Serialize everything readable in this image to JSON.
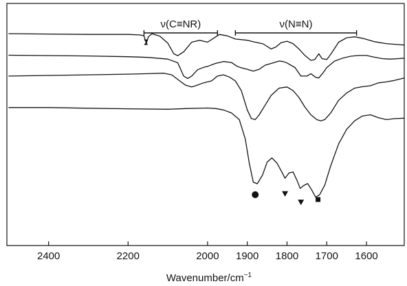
{
  "chart_data": {
    "type": "line",
    "title": "",
    "xlabel": "Wavenumber/cm",
    "xlabel_superscript": "−1",
    "ylabel": "",
    "xlim": [
      2505,
      1505
    ],
    "x_reversed": true,
    "ylim": [
      0,
      1
    ],
    "grid": false,
    "legend": "none",
    "xticks": [
      2400,
      2200,
      2000,
      1900,
      1800,
      1700,
      1600
    ],
    "regions": [
      {
        "label": "ν(C≡NR)",
        "x_range": [
          2160,
          1975
        ]
      },
      {
        "label": "ν(N≡N)",
        "x_range": [
          1930,
          1625
        ]
      }
    ],
    "markers": [
      {
        "label": "‡",
        "shape": "double-dagger",
        "x": 2155,
        "y": 0.84
      },
      {
        "label": "●",
        "shape": "circle",
        "x": 1880,
        "y": 0.21
      },
      {
        "label": "▼",
        "shape": "triangle-down",
        "x": 1805,
        "y": 0.213
      },
      {
        "label": "▼",
        "shape": "triangle-down",
        "x": 1765,
        "y": 0.178
      },
      {
        "label": "■",
        "shape": "square",
        "x": 1722,
        "y": 0.19
      }
    ],
    "series": [
      {
        "points": [
          [
            2500,
            0.875
          ],
          [
            2300,
            0.872
          ],
          [
            2200,
            0.872
          ],
          [
            2170,
            0.87
          ],
          [
            2160,
            0.866
          ],
          [
            2154,
            0.835
          ],
          [
            2149,
            0.862
          ],
          [
            2140,
            0.875
          ],
          [
            2120,
            0.865
          ],
          [
            2100,
            0.836
          ],
          [
            2085,
            0.792
          ],
          [
            2075,
            0.784
          ],
          [
            2060,
            0.8
          ],
          [
            2040,
            0.84
          ],
          [
            2020,
            0.848
          ],
          [
            2000,
            0.84
          ],
          [
            1985,
            0.856
          ],
          [
            1970,
            0.872
          ],
          [
            1950,
            0.866
          ],
          [
            1930,
            0.853
          ],
          [
            1900,
            0.848
          ],
          [
            1880,
            0.84
          ],
          [
            1860,
            0.833
          ],
          [
            1840,
            0.812
          ],
          [
            1828,
            0.82
          ],
          [
            1815,
            0.838
          ],
          [
            1800,
            0.844
          ],
          [
            1785,
            0.834
          ],
          [
            1770,
            0.812
          ],
          [
            1755,
            0.785
          ],
          [
            1740,
            0.765
          ],
          [
            1730,
            0.768
          ],
          [
            1720,
            0.792
          ],
          [
            1712,
            0.772
          ],
          [
            1700,
            0.768
          ],
          [
            1690,
            0.79
          ],
          [
            1670,
            0.84
          ],
          [
            1650,
            0.858
          ],
          [
            1630,
            0.862
          ],
          [
            1610,
            0.856
          ],
          [
            1580,
            0.842
          ],
          [
            1550,
            0.834
          ],
          [
            1520,
            0.83
          ],
          [
            1505,
            0.828
          ]
        ]
      },
      {
        "points": [
          [
            2500,
            0.786
          ],
          [
            2300,
            0.783
          ],
          [
            2200,
            0.78
          ],
          [
            2150,
            0.777
          ],
          [
            2100,
            0.77
          ],
          [
            2075,
            0.755
          ],
          [
            2060,
            0.7
          ],
          [
            2050,
            0.69
          ],
          [
            2040,
            0.7
          ],
          [
            2025,
            0.726
          ],
          [
            2010,
            0.736
          ],
          [
            2000,
            0.74
          ],
          [
            1980,
            0.752
          ],
          [
            1960,
            0.76
          ],
          [
            1940,
            0.756
          ],
          [
            1925,
            0.74
          ],
          [
            1915,
            0.734
          ],
          [
            1900,
            0.728
          ],
          [
            1885,
            0.72
          ],
          [
            1870,
            0.728
          ],
          [
            1855,
            0.745
          ],
          [
            1840,
            0.752
          ],
          [
            1820,
            0.762
          ],
          [
            1810,
            0.76
          ],
          [
            1800,
            0.754
          ],
          [
            1780,
            0.735
          ],
          [
            1765,
            0.7
          ],
          [
            1750,
            0.7
          ],
          [
            1740,
            0.71
          ],
          [
            1728,
            0.695
          ],
          [
            1720,
            0.692
          ],
          [
            1710,
            0.712
          ],
          [
            1700,
            0.735
          ],
          [
            1680,
            0.762
          ],
          [
            1660,
            0.774
          ],
          [
            1640,
            0.782
          ],
          [
            1620,
            0.785
          ],
          [
            1600,
            0.785
          ],
          [
            1580,
            0.778
          ],
          [
            1560,
            0.772
          ],
          [
            1540,
            0.77
          ],
          [
            1520,
            0.772
          ],
          [
            1505,
            0.774
          ]
        ]
      },
      {
        "points": [
          [
            2500,
            0.7
          ],
          [
            2300,
            0.705
          ],
          [
            2200,
            0.708
          ],
          [
            2150,
            0.71
          ],
          [
            2110,
            0.712
          ],
          [
            2090,
            0.705
          ],
          [
            2070,
            0.68
          ],
          [
            2055,
            0.662
          ],
          [
            2040,
            0.655
          ],
          [
            2030,
            0.66
          ],
          [
            2010,
            0.672
          ],
          [
            1990,
            0.68
          ],
          [
            1975,
            0.7
          ],
          [
            1960,
            0.705
          ],
          [
            1945,
            0.696
          ],
          [
            1930,
            0.68
          ],
          [
            1915,
            0.64
          ],
          [
            1900,
            0.56
          ],
          [
            1890,
            0.525
          ],
          [
            1880,
            0.52
          ],
          [
            1870,
            0.54
          ],
          [
            1855,
            0.58
          ],
          [
            1840,
            0.62
          ],
          [
            1820,
            0.65
          ],
          [
            1800,
            0.655
          ],
          [
            1785,
            0.64
          ],
          [
            1770,
            0.612
          ],
          [
            1755,
            0.572
          ],
          [
            1740,
            0.54
          ],
          [
            1725,
            0.52
          ],
          [
            1715,
            0.515
          ],
          [
            1705,
            0.52
          ],
          [
            1690,
            0.548
          ],
          [
            1670,
            0.6
          ],
          [
            1650,
            0.63
          ],
          [
            1630,
            0.65
          ],
          [
            1610,
            0.656
          ],
          [
            1590,
            0.66
          ],
          [
            1570,
            0.672
          ],
          [
            1550,
            0.676
          ],
          [
            1530,
            0.682
          ],
          [
            1505,
            0.692
          ]
        ]
      },
      {
        "points": [
          [
            2500,
            0.57
          ],
          [
            2400,
            0.57
          ],
          [
            2300,
            0.567
          ],
          [
            2200,
            0.565
          ],
          [
            2100,
            0.563
          ],
          [
            2050,
            0.566
          ],
          [
            2000,
            0.568
          ],
          [
            1980,
            0.566
          ],
          [
            1960,
            0.56
          ],
          [
            1940,
            0.548
          ],
          [
            1920,
            0.52
          ],
          [
            1905,
            0.44
          ],
          [
            1895,
            0.34
          ],
          [
            1885,
            0.262
          ],
          [
            1875,
            0.255
          ],
          [
            1862,
            0.29
          ],
          [
            1850,
            0.345
          ],
          [
            1838,
            0.362
          ],
          [
            1825,
            0.34
          ],
          [
            1812,
            0.3
          ],
          [
            1805,
            0.278
          ],
          [
            1795,
            0.3
          ],
          [
            1785,
            0.304
          ],
          [
            1775,
            0.27
          ],
          [
            1767,
            0.236
          ],
          [
            1758,
            0.248
          ],
          [
            1748,
            0.256
          ],
          [
            1738,
            0.23
          ],
          [
            1728,
            0.2
          ],
          [
            1718,
            0.21
          ],
          [
            1705,
            0.25
          ],
          [
            1690,
            0.33
          ],
          [
            1670,
            0.42
          ],
          [
            1650,
            0.48
          ],
          [
            1630,
            0.515
          ],
          [
            1610,
            0.535
          ],
          [
            1590,
            0.54
          ],
          [
            1570,
            0.528
          ],
          [
            1550,
            0.52
          ],
          [
            1530,
            0.524
          ],
          [
            1505,
            0.526
          ]
        ]
      }
    ]
  }
}
